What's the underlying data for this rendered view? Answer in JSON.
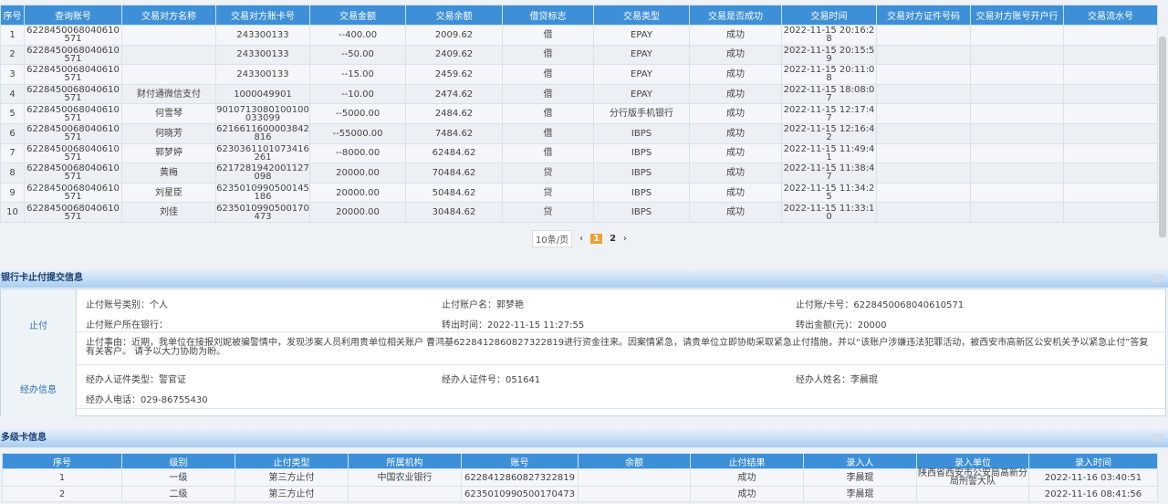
{
  "transactions": {
    "columns": [
      "序号",
      "查询账号",
      "交易对方名称",
      "交易对方账卡号",
      "交易金额",
      "交易余额",
      "借贷标志",
      "交易类型",
      "交易是否成功",
      "交易时间",
      "交易对方证件号码",
      "交易对方账号开户行",
      "交易流水号"
    ],
    "rows": [
      [
        "1",
        "6228450068040610571",
        "",
        "243300133",
        "--400.00",
        "2009.62",
        "借",
        "EPAY",
        "成功",
        "2022-11-15 20:16:28",
        "",
        "",
        ""
      ],
      [
        "2",
        "6228450068040610571",
        "",
        "243300133",
        "--50.00",
        "2409.62",
        "借",
        "EPAY",
        "成功",
        "2022-11-15 20:15:59",
        "",
        "",
        ""
      ],
      [
        "3",
        "6228450068040610571",
        "",
        "243300133",
        "--15.00",
        "2459.62",
        "借",
        "EPAY",
        "成功",
        "2022-11-15 20:11:08",
        "",
        "",
        ""
      ],
      [
        "4",
        "6228450068040610571",
        "财付通微信支付",
        "1000049901",
        "--10.00",
        "2474.62",
        "借",
        "EPAY",
        "成功",
        "2022-11-15 18:08:07",
        "",
        "",
        ""
      ],
      [
        "5",
        "6228450068040610571",
        "何雪琴",
        "9010713080100100033099",
        "--5000.00",
        "2484.62",
        "借",
        "分行版手机银行",
        "成功",
        "2022-11-15 12:17:47",
        "",
        "",
        ""
      ],
      [
        "6",
        "6228450068040610571",
        "何晓芳",
        "6216611600003842816",
        "--55000.00",
        "7484.62",
        "借",
        "IBPS",
        "成功",
        "2022-11-15 12:16:42",
        "",
        "",
        ""
      ],
      [
        "7",
        "6228450068040610571",
        "郭梦婷",
        "6230361101073416261",
        "--8000.00",
        "62484.62",
        "借",
        "IBPS",
        "成功",
        "2022-11-15 11:49:41",
        "",
        "",
        ""
      ],
      [
        "8",
        "6228450068040610571",
        "黄梅",
        "6217281942001127098",
        "20000.00",
        "70484.62",
        "贷",
        "IBPS",
        "成功",
        "2022-11-15 11:38:47",
        "",
        "",
        ""
      ],
      [
        "9",
        "6228450068040610571",
        "刘星臣",
        "6235010990500145186",
        "20000.00",
        "50484.62",
        "贷",
        "IBPS",
        "成功",
        "2022-11-15 11:34:25",
        "",
        "",
        ""
      ],
      [
        "10",
        "6228450068040610571",
        "刘佳",
        "6235010990500170473",
        "20000.00",
        "30484.62",
        "贷",
        "IBPS",
        "成功",
        "2022-11-15 11:33:10",
        "",
        "",
        ""
      ]
    ]
  },
  "pager": {
    "page_size": "10条/页",
    "pages": [
      "1",
      "2"
    ],
    "current": "1",
    "prev": "‹",
    "next": "›"
  },
  "stop_section": {
    "title": "银行卡止付提交信息",
    "stop_label": "止付",
    "account_type": "止付账号类别：个人",
    "account_name": "止付账户名：郭梦艳",
    "card_no": "止付账/卡号：6228450068040610571",
    "bank": "止付账户所在银行：",
    "out_time": "转出时间：2022-11-15 11:27:55",
    "out_amount": "转出金额(元)：20000",
    "reason": "止付事由：近期，我单位在接报刘妮被骗警情中，发现涉案人员利用贵单位相关账户 曹鸿基6228412860827322819进行资金往来。因案情紧急，请贵单位立即协助采取紧急止付措施，并以“该账户涉嫌违法犯罪活动，被西安市高新区公安机关予以紧急止付”答复有关客户。 请予以大力协助为盼。",
    "handler_label": "经办信息",
    "handler_id_type": "经办人证件类型：警官证",
    "handler_id_no": "经办人证件号：051641",
    "handler_name": "经办人姓名：李晨琨",
    "handler_phone": "经办人电话：029-86755430"
  },
  "multi_card": {
    "title": "多级卡信息",
    "columns": [
      "序号",
      "级别",
      "止付类型",
      "所属机构",
      "账号",
      "余额",
      "止付结果",
      "录入人",
      "录入单位",
      "录入时间"
    ],
    "rows": [
      [
        "1",
        "一级",
        "第三方止付",
        "中国农业银行",
        "6228412860827322819",
        "",
        "成功",
        "李晨琨",
        "陕西省西安市公安局高新分局刑警大队",
        "2022-11-16 03:40:51"
      ],
      [
        "2",
        "二级",
        "第三方止付",
        "",
        "6235010990500170473",
        "",
        "成功",
        "李晨琨",
        "",
        "2022-11-16 08:41:56"
      ]
    ]
  },
  "colors": {
    "header_blue": "#3d8fd8",
    "section_title": "#1a3e73",
    "current_page": "#f0a030"
  }
}
